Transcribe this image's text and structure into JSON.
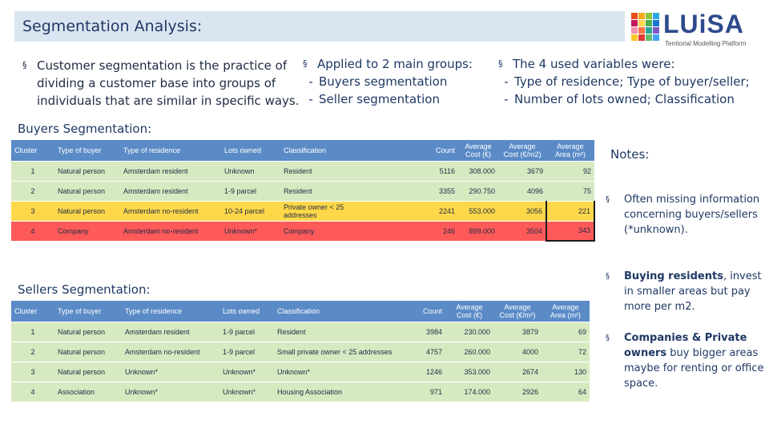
{
  "header": {
    "title": "Segmentation Analysis:"
  },
  "logo": {
    "name": "LUiSA",
    "subtitle": "Territorial Modelling Platform"
  },
  "intro": {
    "col1": {
      "bullet": "§",
      "text": "Customer segmentation is the practice of dividing a customer base into groups of individuals that are similar in specific ways."
    },
    "col2": {
      "bullet": "§",
      "heading": "Applied to 2 main groups:",
      "items": [
        "Buyers segmentation",
        "Seller segmentation"
      ]
    },
    "col3": {
      "bullet": "§",
      "heading": "The 4 used variables were:",
      "items": [
        "Type of residence; Type of buyer/seller;",
        "Number of lots owned; Classification"
      ]
    }
  },
  "buyers": {
    "title": "Buyers Segmentation:",
    "columns": [
      "Cluster",
      "Type of buyer",
      "Type of residence",
      "Lots owned",
      "Classification",
      "Count",
      "Average Cost (€)",
      "Average Cost (€/m2)",
      "Average Area (m²)"
    ],
    "rows": [
      {
        "cluster": "1",
        "buyer": "Natural person",
        "residence": "Amsterdam resident",
        "lots": "Unknown",
        "classification": "Resident",
        "count": "5116",
        "cost": "308.000",
        "cost_m2": "3679",
        "area": "92"
      },
      {
        "cluster": "2",
        "buyer": "Natural person",
        "residence": "Amsterdam resident",
        "lots": "1-9 parcel",
        "classification": "Resident",
        "count": "3355",
        "cost": "290.750",
        "cost_m2": "4096",
        "area": "75"
      },
      {
        "cluster": "3",
        "buyer": "Natural person",
        "residence": "Amsterdam no-resident",
        "lots": "10-24 parcel",
        "classification": "Private owner < 25 addresses",
        "count": "2241",
        "cost": "553.000",
        "cost_m2": "3056",
        "area": "221"
      },
      {
        "cluster": "4",
        "buyer": "Company",
        "residence": "Amsterdam no-resident",
        "lots": "Unknown*",
        "classification": "Company",
        "count": "246",
        "cost": "899.000",
        "cost_m2": "3504",
        "area": "343"
      }
    ]
  },
  "sellers": {
    "title": "Sellers Segmentation:",
    "columns": [
      "Cluster",
      "Type of buyer",
      "Type of residence",
      "Lots owned",
      "Classification",
      "Count",
      "Average Cost (€)",
      "Average Cost (€/m²)",
      "Average Area (m²)"
    ],
    "rows": [
      {
        "cluster": "1",
        "buyer": "Natural person",
        "residence": "Amsterdam resident",
        "lots": "1-9 parcel",
        "classification": "Resident",
        "count": "3984",
        "cost": "230.000",
        "cost_m2": "3879",
        "area": "69"
      },
      {
        "cluster": "2",
        "buyer": "Natural person",
        "residence": "Amsterdam no-resident",
        "lots": "1-9 parcel",
        "classification": "Small private owner < 25 addresses",
        "count": "4757",
        "cost": "260.000",
        "cost_m2": "4000",
        "area": "72"
      },
      {
        "cluster": "3",
        "buyer": "Natural person",
        "residence": "Unknown*",
        "lots": "Unknown*",
        "classification": "Unknown*",
        "count": "1246",
        "cost": "353.000",
        "cost_m2": "2674",
        "area": "130"
      },
      {
        "cluster": "4",
        "buyer": "Association",
        "residence": "Unknown*",
        "lots": "Unknown*",
        "classification": "Housing Association",
        "count": "971",
        "cost": "174.000",
        "cost_m2": "2926",
        "area": "64"
      }
    ]
  },
  "notes": {
    "title": "Notes:",
    "bullet": "§",
    "items": [
      {
        "bold": "",
        "text": "Often missing information concerning buyers/sellers (*unknown)."
      },
      {
        "bold": "Buying residents",
        "text": ", invest in smaller areas but pay more per m2."
      },
      {
        "bold": "Companies & Private owners",
        "text": " buy bigger areas maybe for renting or office space."
      }
    ]
  },
  "colors": {
    "header_bg": "#dbe5f1",
    "table_header": "#5b8bc7",
    "green": "#d7e9c1",
    "yellow": "#ffd84a",
    "red": "#ff5a5a"
  }
}
